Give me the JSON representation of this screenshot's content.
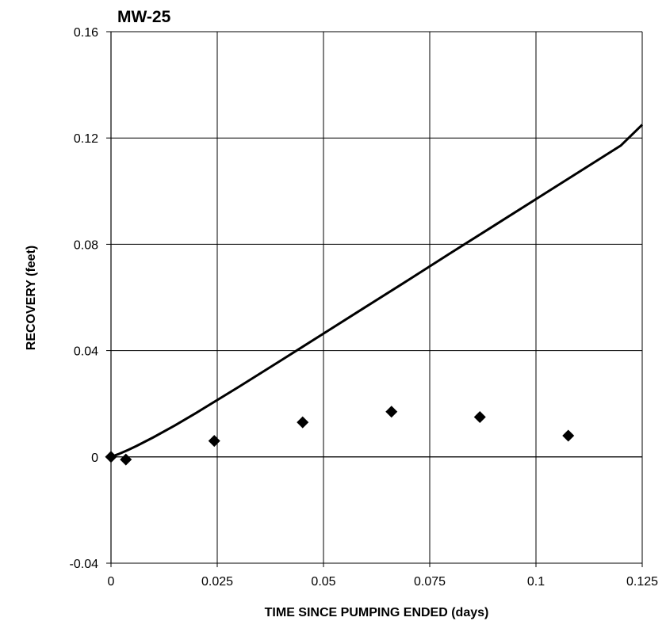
{
  "chart_data": {
    "type": "scatter",
    "title": "MW-25",
    "xlabel": "TIME SINCE PUMPING ENDED (days)",
    "ylabel": "RECOVERY (feet)",
    "xlim": [
      0,
      0.125
    ],
    "ylim": [
      -0.04,
      0.16
    ],
    "x_ticks": [
      0,
      0.025,
      0.05,
      0.075,
      0.1,
      0.125
    ],
    "y_ticks": [
      -0.04,
      0,
      0.04,
      0.08,
      0.12,
      0.16
    ],
    "x_tick_labels": [
      "0",
      "0.025",
      "0.05",
      "0.075",
      "0.1",
      "0.125"
    ],
    "y_tick_labels": [
      "-0.04",
      "0",
      "0.04",
      "0.08",
      "0.12",
      "0.16"
    ],
    "grid": true,
    "legend": "none",
    "colors": {
      "axis": "#000000",
      "grid": "#000000",
      "line": "#000000",
      "marker": "#000000",
      "background": "#ffffff"
    },
    "series": [
      {
        "type": "scatter",
        "marker": "diamond",
        "x": [
          0.0,
          0.0035,
          0.0243,
          0.0451,
          0.066,
          0.0868,
          0.1076
        ],
        "y": [
          0.0,
          -0.001,
          0.006,
          0.013,
          0.017,
          0.015,
          0.008
        ]
      },
      {
        "type": "line",
        "x": [
          0.0,
          0.002,
          0.004,
          0.006,
          0.01,
          0.015,
          0.02,
          0.03,
          0.04,
          0.05,
          0.06,
          0.07,
          0.08,
          0.09,
          0.1,
          0.11,
          0.12,
          0.125
        ],
        "y": [
          0.0,
          0.0012,
          0.0026,
          0.0041,
          0.0074,
          0.0118,
          0.0165,
          0.0263,
          0.0363,
          0.0464,
          0.0565,
          0.0666,
          0.0768,
          0.0869,
          0.097,
          0.1071,
          0.1172,
          0.125
        ]
      }
    ]
  }
}
